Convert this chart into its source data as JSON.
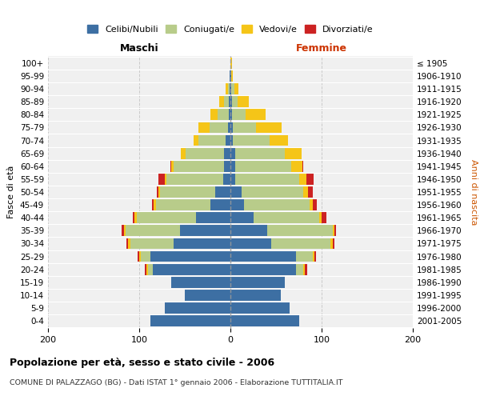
{
  "age_groups": [
    "0-4",
    "5-9",
    "10-14",
    "15-19",
    "20-24",
    "25-29",
    "30-34",
    "35-39",
    "40-44",
    "45-49",
    "50-54",
    "55-59",
    "60-64",
    "65-69",
    "70-74",
    "75-79",
    "80-84",
    "85-89",
    "90-94",
    "95-99",
    "100+"
  ],
  "birth_years": [
    "2001-2005",
    "1996-2000",
    "1991-1995",
    "1986-1990",
    "1981-1985",
    "1976-1980",
    "1971-1975",
    "1966-1970",
    "1961-1965",
    "1956-1960",
    "1951-1955",
    "1946-1950",
    "1941-1945",
    "1936-1940",
    "1931-1935",
    "1926-1930",
    "1921-1925",
    "1916-1920",
    "1911-1915",
    "1906-1910",
    "≤ 1905"
  ],
  "male_celibi": [
    88,
    72,
    50,
    65,
    85,
    88,
    62,
    55,
    38,
    22,
    17,
    8,
    7,
    7,
    5,
    3,
    2,
    2,
    1,
    1,
    0
  ],
  "male_coniugati": [
    0,
    0,
    0,
    0,
    5,
    10,
    48,
    60,
    65,
    60,
    60,
    62,
    55,
    42,
    30,
    20,
    12,
    5,
    2,
    0,
    0
  ],
  "male_vedovi": [
    0,
    0,
    0,
    0,
    2,
    2,
    2,
    2,
    2,
    2,
    2,
    2,
    3,
    5,
    5,
    12,
    8,
    5,
    2,
    0,
    0
  ],
  "male_divorziati": [
    0,
    0,
    0,
    0,
    2,
    2,
    2,
    2,
    2,
    2,
    2,
    7,
    1,
    0,
    0,
    0,
    0,
    0,
    0,
    0,
    0
  ],
  "female_nubili": [
    75,
    65,
    55,
    60,
    72,
    72,
    45,
    40,
    25,
    15,
    12,
    5,
    5,
    5,
    3,
    3,
    2,
    2,
    1,
    1,
    0
  ],
  "female_coniugate": [
    0,
    0,
    0,
    0,
    8,
    18,
    65,
    72,
    72,
    72,
    68,
    70,
    62,
    55,
    40,
    25,
    15,
    6,
    3,
    0,
    0
  ],
  "female_vedove": [
    0,
    0,
    0,
    0,
    2,
    2,
    2,
    2,
    3,
    3,
    5,
    8,
    12,
    18,
    20,
    28,
    22,
    12,
    5,
    2,
    2
  ],
  "female_divorziate": [
    0,
    0,
    0,
    0,
    2,
    2,
    2,
    2,
    5,
    5,
    5,
    8,
    1,
    0,
    0,
    0,
    0,
    0,
    0,
    0,
    0
  ],
  "colors_celibi": "#3d6fa3",
  "colors_coniugati": "#b8cc8a",
  "colors_vedovi": "#f5c518",
  "colors_divorziati": "#cc2222",
  "xlim": [
    -200,
    200
  ],
  "xticks": [
    -200,
    -100,
    0,
    100,
    200
  ],
  "xticklabels": [
    "200",
    "100",
    "0",
    "100",
    "200"
  ],
  "title": "Popolazione per età, sesso e stato civile - 2006",
  "subtitle": "COMUNE DI PALAZZAGO (BG) - Dati ISTAT 1° gennaio 2006 - Elaborazione TUTTITALIA.IT",
  "ylabel_left": "Fasce di età",
  "ylabel_right": "Anni di nascita",
  "xlabel_male": "Maschi",
  "xlabel_female": "Femmine",
  "legend_labels": [
    "Celibi/Nubili",
    "Coniugati/e",
    "Vedovi/e",
    "Divorziati/e"
  ],
  "bar_height": 0.85
}
